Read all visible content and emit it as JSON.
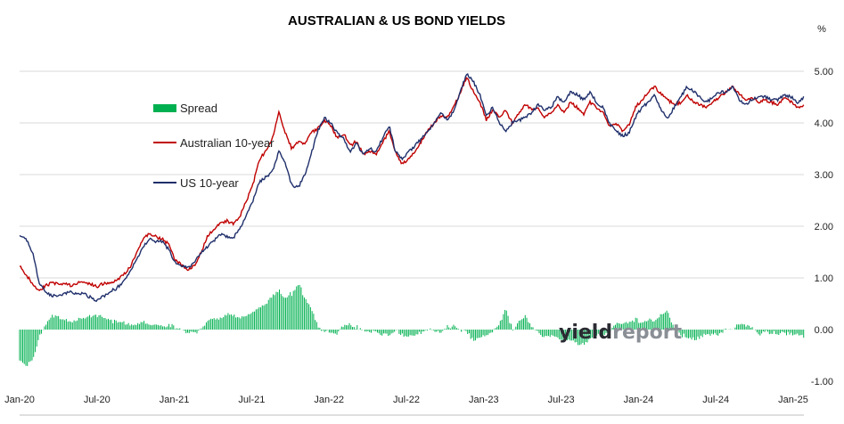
{
  "chart_data": {
    "type": "line",
    "title": "AUSTRALIAN & US BOND YIELDS",
    "unit_label": "%",
    "ylim": [
      -1.0,
      5.0
    ],
    "ytick_labels": [
      "5.00",
      "4.00",
      "3.00",
      "2.00",
      "1.00",
      "0.00",
      "-1.00"
    ],
    "xtick_labels": [
      "Jan-20",
      "Jul-20",
      "Jan-21",
      "Jul-21",
      "Jan-22",
      "Jul-22",
      "Jan-23",
      "Jul-23",
      "Jan-24",
      "Jul-24",
      "Jan-25"
    ],
    "grid": "horizontal",
    "legend_position": "upper-left",
    "legend": [
      "Spread",
      "Australian 10-year",
      "US 10-year"
    ],
    "x": [
      0,
      0.5,
      1,
      1.5,
      2,
      2.5,
      3,
      3.5,
      4,
      4.5,
      5,
      5.5,
      6,
      6.5,
      7,
      7.5,
      8,
      8.5,
      9,
      9.5,
      10,
      10.5,
      11,
      11.5,
      12,
      12.5,
      13,
      13.5,
      14,
      14.5,
      15,
      15.5,
      16,
      16.5,
      17,
      17.5,
      18,
      18.5,
      19,
      19.5,
      20,
      20.5,
      21,
      21.5,
      22,
      22.5,
      23,
      23.5,
      24,
      24.5,
      25,
      25.5,
      26,
      26.5,
      27,
      27.5,
      28,
      28.5,
      29,
      29.5,
      30,
      30.5,
      31,
      31.5,
      32,
      32.5,
      33,
      33.5,
      34,
      34.5,
      35,
      35.5,
      36,
      36.5,
      37,
      37.5,
      38,
      38.5,
      39,
      39.5,
      40,
      40.5,
      41,
      41.5,
      42,
      42.5,
      43,
      43.5,
      44,
      44.5,
      45,
      45.5,
      46,
      46.5,
      47,
      47.5,
      48,
      48.5,
      49,
      49.5,
      50,
      50.5,
      51,
      51.5,
      52,
      52.5,
      53,
      53.5,
      54,
      54.5,
      55,
      55.5,
      56,
      56.5,
      57,
      57.5,
      58,
      58.5,
      59,
      59.5,
      60,
      60.5
    ],
    "series": [
      {
        "name": "Australian 10-year",
        "color": "#c00000",
        "values": [
          1.25,
          1.05,
          0.9,
          0.75,
          0.85,
          0.9,
          0.9,
          0.88,
          0.85,
          0.9,
          0.92,
          0.88,
          0.84,
          0.9,
          0.92,
          0.96,
          1.05,
          1.2,
          1.45,
          1.75,
          1.85,
          1.8,
          1.75,
          1.65,
          1.35,
          1.25,
          1.15,
          1.25,
          1.5,
          1.8,
          1.95,
          2.05,
          2.1,
          2.05,
          2.2,
          2.5,
          2.8,
          3.3,
          3.45,
          3.7,
          4.2,
          3.8,
          3.5,
          3.65,
          3.6,
          3.8,
          3.9,
          4.05,
          3.95,
          3.7,
          3.8,
          3.55,
          3.65,
          3.4,
          3.45,
          3.4,
          3.6,
          3.85,
          3.45,
          3.2,
          3.3,
          3.45,
          3.65,
          3.85,
          4.0,
          4.15,
          4.1,
          4.3,
          4.6,
          4.9,
          4.6,
          4.4,
          4.05,
          4.25,
          4.1,
          4.25,
          4.0,
          4.2,
          4.35,
          4.25,
          4.3,
          4.1,
          4.2,
          4.35,
          4.2,
          4.4,
          4.3,
          4.15,
          4.4,
          4.3,
          4.2,
          3.95,
          4.0,
          3.85,
          3.95,
          4.3,
          4.45,
          4.6,
          4.7,
          4.55,
          4.45,
          4.35,
          4.4,
          4.55,
          4.4,
          4.35,
          4.3,
          4.4,
          4.5,
          4.6,
          4.7,
          4.55,
          4.45,
          4.5,
          4.4,
          4.45,
          4.4,
          4.35,
          4.5,
          4.4,
          4.3,
          4.35
        ]
      },
      {
        "name": "US 10-year",
        "color": "#1f2f6b",
        "values": [
          1.85,
          1.75,
          1.5,
          0.9,
          0.75,
          0.65,
          0.65,
          0.7,
          0.72,
          0.7,
          0.68,
          0.62,
          0.56,
          0.65,
          0.75,
          0.8,
          0.93,
          1.1,
          1.35,
          1.6,
          1.75,
          1.7,
          1.7,
          1.55,
          1.3,
          1.25,
          1.2,
          1.3,
          1.5,
          1.6,
          1.72,
          1.85,
          1.8,
          1.78,
          1.95,
          2.2,
          2.5,
          2.85,
          2.95,
          3.05,
          3.45,
          3.2,
          2.8,
          2.75,
          3.0,
          3.4,
          3.85,
          4.1,
          4.0,
          3.8,
          3.7,
          3.45,
          3.6,
          3.4,
          3.5,
          3.45,
          3.7,
          3.95,
          3.45,
          3.3,
          3.45,
          3.55,
          3.7,
          3.85,
          4.0,
          4.2,
          4.05,
          4.25,
          4.6,
          4.95,
          4.8,
          4.55,
          4.15,
          4.3,
          4.0,
          3.85,
          4.0,
          4.05,
          4.1,
          4.2,
          4.35,
          4.25,
          4.3,
          4.5,
          4.4,
          4.6,
          4.55,
          4.45,
          4.6,
          4.4,
          4.3,
          4.0,
          3.85,
          3.75,
          3.8,
          4.1,
          4.3,
          4.4,
          4.55,
          4.25,
          4.1,
          4.3,
          4.5,
          4.7,
          4.6,
          4.5,
          4.4,
          4.5,
          4.6,
          4.6,
          4.7,
          4.45,
          4.35,
          4.45,
          4.5,
          4.5,
          4.45,
          4.45,
          4.55,
          4.5,
          4.4,
          4.5
        ]
      },
      {
        "name": "Spread",
        "color": "#00b050",
        "type": "bar"
      }
    ]
  },
  "watermark": {
    "part1": "yield",
    "part2": "report"
  },
  "colors": {
    "gridline": "#d9d9d9",
    "axis": "#bfbfbf"
  }
}
